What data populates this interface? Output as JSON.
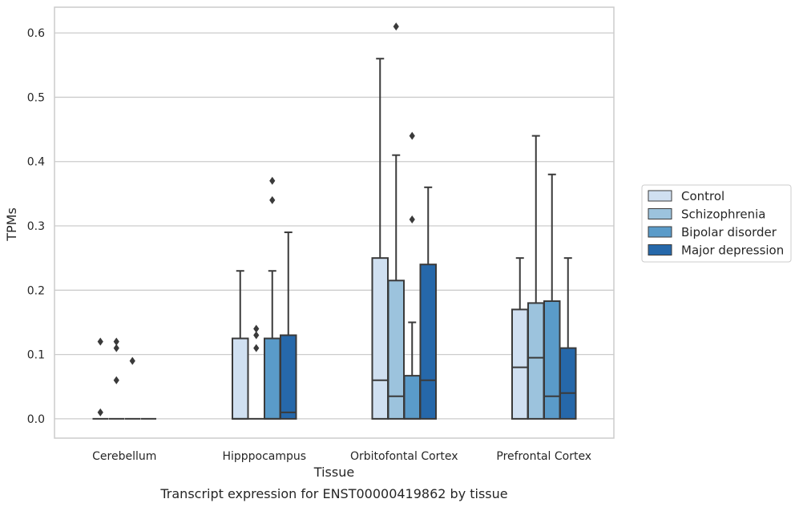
{
  "caption": "Transcript expression for ENST00000419862 by tissue",
  "chart_data": {
    "type": "boxplot",
    "xlabel": "Tissue",
    "ylabel": "TPMs",
    "ylim": [
      -0.03,
      0.64
    ],
    "yticks": [
      "0.0",
      "0.1",
      "0.2",
      "0.3",
      "0.4",
      "0.5",
      "0.6"
    ],
    "categories": [
      "Cerebellum",
      "Hipppocampus",
      "Orbitofontal Cortex",
      "Prefrontal Cortex"
    ],
    "grid": true,
    "legend_position": "right",
    "series": [
      {
        "name": "Control",
        "color": "#d0e0f1",
        "boxes": [
          {
            "q1": 0,
            "median": 0,
            "q3": 0,
            "whisker_low": 0,
            "whisker_high": 0,
            "outliers": [
              0.01,
              0.12
            ]
          },
          {
            "q1": 0,
            "median": 0,
            "q3": 0.125,
            "whisker_low": 0,
            "whisker_high": 0.23,
            "outliers": []
          },
          {
            "q1": 0,
            "median": 0.06,
            "q3": 0.25,
            "whisker_low": 0,
            "whisker_high": 0.56,
            "outliers": []
          },
          {
            "q1": 0,
            "median": 0.08,
            "q3": 0.17,
            "whisker_low": 0,
            "whisker_high": 0.25,
            "outliers": []
          }
        ]
      },
      {
        "name": "Schizophrenia",
        "color": "#9cc3dd",
        "boxes": [
          {
            "q1": 0,
            "median": 0,
            "q3": 0,
            "whisker_low": 0,
            "whisker_high": 0,
            "outliers": [
              0.06,
              0.11,
              0.12
            ]
          },
          {
            "q1": 0,
            "median": 0,
            "q3": 0,
            "whisker_low": 0,
            "whisker_high": 0,
            "outliers": [
              0.11,
              0.13,
              0.14
            ]
          },
          {
            "q1": 0,
            "median": 0.035,
            "q3": 0.215,
            "whisker_low": 0,
            "whisker_high": 0.41,
            "outliers": [
              0.61
            ]
          },
          {
            "q1": 0,
            "median": 0.095,
            "q3": 0.18,
            "whisker_low": 0,
            "whisker_high": 0.44,
            "outliers": []
          }
        ]
      },
      {
        "name": "Bipolar disorder",
        "color": "#5a9bc9",
        "boxes": [
          {
            "q1": 0,
            "median": 0,
            "q3": 0,
            "whisker_low": 0,
            "whisker_high": 0,
            "outliers": [
              0.09
            ]
          },
          {
            "q1": 0,
            "median": 0,
            "q3": 0.125,
            "whisker_low": 0,
            "whisker_high": 0.23,
            "outliers": [
              0.34,
              0.37
            ]
          },
          {
            "q1": 0,
            "median": 0,
            "q3": 0.067,
            "whisker_low": 0,
            "whisker_high": 0.15,
            "outliers": [
              0.31,
              0.44
            ]
          },
          {
            "q1": 0,
            "median": 0.035,
            "q3": 0.183,
            "whisker_low": 0,
            "whisker_high": 0.38,
            "outliers": []
          }
        ]
      },
      {
        "name": "Major depression",
        "color": "#2668aa",
        "boxes": [
          {
            "q1": 0,
            "median": 0,
            "q3": 0,
            "whisker_low": 0,
            "whisker_high": 0,
            "outliers": []
          },
          {
            "q1": 0,
            "median": 0.01,
            "q3": 0.13,
            "whisker_low": 0,
            "whisker_high": 0.29,
            "outliers": []
          },
          {
            "q1": 0,
            "median": 0.06,
            "q3": 0.24,
            "whisker_low": 0,
            "whisker_high": 0.36,
            "outliers": []
          },
          {
            "q1": 0,
            "median": 0.04,
            "q3": 0.11,
            "whisker_low": 0,
            "whisker_high": 0.25,
            "outliers": []
          }
        ]
      }
    ]
  }
}
